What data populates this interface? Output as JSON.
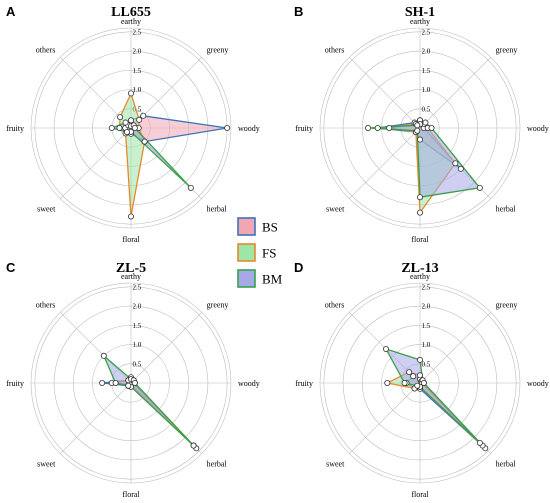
{
  "chart_data": {
    "type": "radar",
    "axes": [
      "earthy",
      "greeny",
      "woody",
      "herbal",
      "floral",
      "sweet",
      "fruity",
      "others"
    ],
    "ticks": [
      "0.5",
      "1.0",
      "1.5",
      "2.0",
      "2.5"
    ],
    "rmax": 2.6,
    "legend": {
      "placement": "center",
      "series": [
        {
          "name": "BS",
          "stroke": "#3a74b8",
          "fill": "#f2a6b4"
        },
        {
          "name": "FS",
          "stroke": "#e8892c",
          "fill": "#9ee6a8"
        },
        {
          "name": "BM",
          "stroke": "#3aa04a",
          "fill": "#a6a8e8"
        }
      ]
    },
    "panels": [
      {
        "letter": "A",
        "title": "LL655",
        "series": [
          {
            "name": "BS",
            "values": [
              0.2,
              0.45,
              2.5,
              0.5,
              0.15,
              0.15,
              0.15,
              0.1
            ]
          },
          {
            "name": "FS",
            "values": [
              0.9,
              0.3,
              0.2,
              0.5,
              2.3,
              0.2,
              0.3,
              0.4
            ]
          },
          {
            "name": "BM",
            "values": [
              0.05,
              0.1,
              0.1,
              2.2,
              0.1,
              0.15,
              0.5,
              0.2
            ]
          }
        ]
      },
      {
        "letter": "B",
        "title": "SH-1",
        "series": [
          {
            "name": "BS",
            "values": [
              0.2,
              0.1,
              0.1,
              1.5,
              0.3,
              0.15,
              1.1,
              0.2
            ]
          },
          {
            "name": "FS",
            "values": [
              0.2,
              0.15,
              0.2,
              1.3,
              2.2,
              0.15,
              0.8,
              0.15
            ]
          },
          {
            "name": "BM",
            "values": [
              0.1,
              0.2,
              0.3,
              2.2,
              1.8,
              0.1,
              1.35,
              0.1
            ]
          }
        ]
      },
      {
        "letter": "C",
        "title": "ZL-5",
        "series": [
          {
            "name": "BS",
            "values": [
              0.1,
              0.05,
              0.05,
              2.4,
              0.05,
              0.1,
              0.75,
              0.1
            ]
          },
          {
            "name": "FS",
            "values": [
              0.15,
              0.1,
              0.1,
              2.3,
              0.05,
              0.05,
              0.5,
              0.1
            ]
          },
          {
            "name": "BM",
            "values": [
              0.1,
              0.1,
              0.1,
              2.3,
              0.1,
              0.1,
              0.4,
              1.0
            ]
          }
        ]
      },
      {
        "letter": "D",
        "title": "ZL-13",
        "series": [
          {
            "name": "BS",
            "values": [
              0.1,
              0.05,
              0.1,
              2.4,
              0.15,
              0.2,
              0.35,
              0.25
            ]
          },
          {
            "name": "FS",
            "values": [
              0.2,
              0.05,
              0.05,
              2.3,
              0.1,
              0.2,
              0.85,
              0.4
            ]
          },
          {
            "name": "BM",
            "values": [
              0.6,
              0.1,
              0.1,
              2.2,
              0.1,
              0.1,
              0.4,
              1.25
            ]
          }
        ]
      }
    ]
  }
}
